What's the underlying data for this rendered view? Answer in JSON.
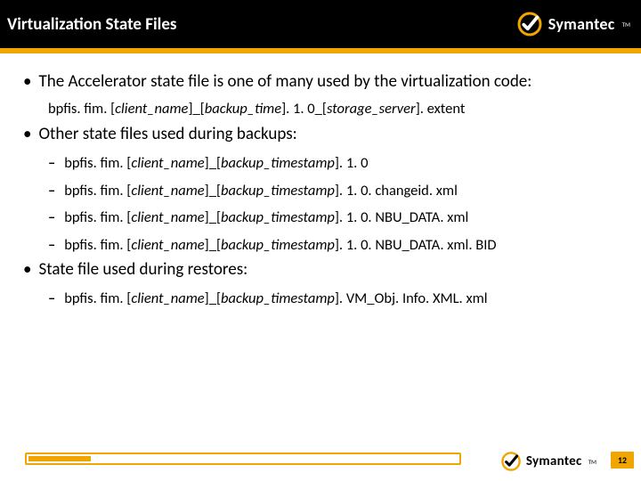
{
  "colors": {
    "header_bg": "#000000",
    "accent": "#f0a500",
    "text": "#000000",
    "header_text": "#ffffff"
  },
  "header": {
    "title": "Virtualization State Files",
    "brand": "Symantec",
    "tm": "TM"
  },
  "bullets": [
    {
      "text": "The Accelerator state file is one of many used by the virtualization code:",
      "subs": [
        {
          "segments": [
            {
              "t": "bpfis. fim. [",
              "i": false
            },
            {
              "t": "client_name",
              "i": true
            },
            {
              "t": "]_[",
              "i": false
            },
            {
              "t": "backup_time",
              "i": true
            },
            {
              "t": "]. 1. 0_[",
              "i": false
            },
            {
              "t": "storage_server",
              "i": true
            },
            {
              "t": "]. extent",
              "i": false
            }
          ]
        }
      ]
    },
    {
      "text": "Other state files used during backups:",
      "dashes": [
        {
          "segments": [
            {
              "t": "bpfis. fim. [",
              "i": false
            },
            {
              "t": "client_name",
              "i": true
            },
            {
              "t": "]_[",
              "i": false
            },
            {
              "t": "backup_timestamp",
              "i": true
            },
            {
              "t": "]. 1. 0",
              "i": false
            }
          ]
        },
        {
          "segments": [
            {
              "t": "bpfis. fim. [",
              "i": false
            },
            {
              "t": "client_name",
              "i": true
            },
            {
              "t": "]_[",
              "i": false
            },
            {
              "t": "backup_timestamp",
              "i": true
            },
            {
              "t": "]. 1. 0. changeid. xml",
              "i": false
            }
          ]
        },
        {
          "segments": [
            {
              "t": "bpfis. fim. [",
              "i": false
            },
            {
              "t": "client_name",
              "i": true
            },
            {
              "t": "]_[",
              "i": false
            },
            {
              "t": "backup_timestamp",
              "i": true
            },
            {
              "t": "]. 1. 0. NBU_DATA. xml",
              "i": false
            }
          ]
        },
        {
          "segments": [
            {
              "t": "bpfis. fim. [",
              "i": false
            },
            {
              "t": "client_name",
              "i": true
            },
            {
              "t": "]_[",
              "i": false
            },
            {
              "t": "backup_timestamp",
              "i": true
            },
            {
              "t": "]. 1. 0. NBU_DATA. xml. BID",
              "i": false
            }
          ]
        }
      ]
    },
    {
      "text": "State file used during restores:",
      "dashes": [
        {
          "segments": [
            {
              "t": "bpfis. fim. [",
              "i": false
            },
            {
              "t": "client_name",
              "i": true
            },
            {
              "t": "]_[",
              "i": false
            },
            {
              "t": "backup_timestamp",
              "i": true
            },
            {
              "t": "]. VM_Obj. Info. XML. xml",
              "i": false
            }
          ]
        }
      ]
    }
  ],
  "footer": {
    "brand": "Symantec",
    "tm": "TM",
    "page": "12"
  }
}
